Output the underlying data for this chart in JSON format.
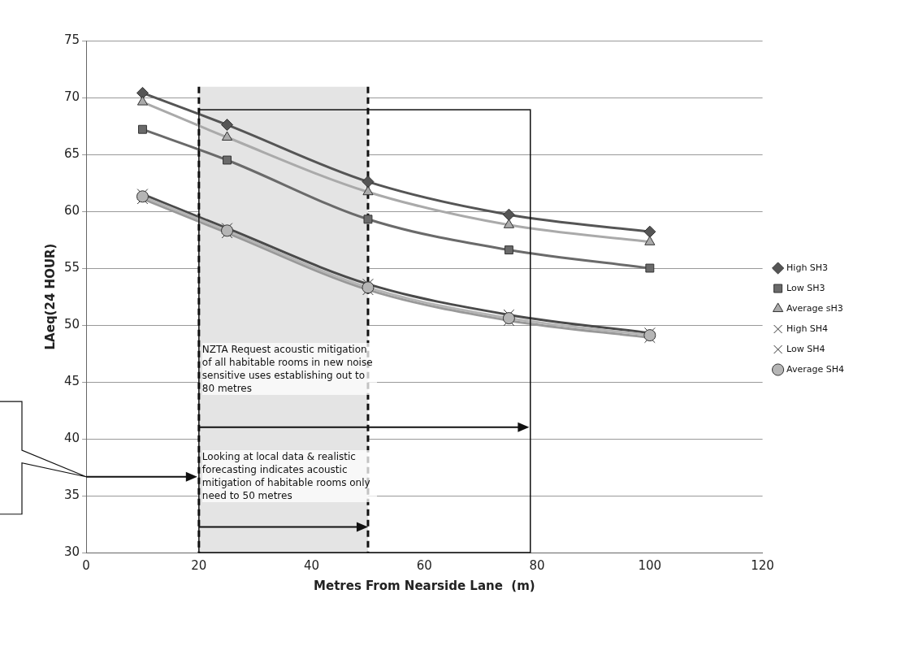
{
  "chart_data": {
    "type": "line",
    "xlabel": "Metres From Nearside Lane  (m)",
    "ylabel": "LAeq(24 HOUR)",
    "x": [
      10,
      25,
      50,
      75,
      100
    ],
    "series": [
      {
        "name": "High SH3",
        "color": "#555555",
        "marker": "diamond",
        "values": [
          70.4,
          67.6,
          62.6,
          59.7,
          58.2
        ]
      },
      {
        "name": "Low SH3",
        "color": "#6a6a6a",
        "marker": "square",
        "values": [
          67.2,
          64.5,
          59.3,
          56.6,
          55.0
        ]
      },
      {
        "name": "Average sH3",
        "color": "#aaaaaa",
        "marker": "triangle",
        "values": [
          69.6,
          66.5,
          61.7,
          58.8,
          57.3
        ]
      },
      {
        "name": "High SH4",
        "color": "#4a4a4a",
        "marker": "cross",
        "values": [
          61.5,
          58.5,
          53.6,
          50.9,
          49.3
        ]
      },
      {
        "name": "Low SH4",
        "color": "#999999",
        "marker": "cross",
        "values": [
          61.1,
          58.1,
          53.1,
          50.4,
          48.9
        ]
      },
      {
        "name": "Average SH4",
        "color": "#b5b5b5",
        "marker": "circle",
        "values": [
          61.3,
          58.3,
          53.3,
          50.6,
          49.1
        ]
      }
    ],
    "xlim": [
      0,
      120
    ],
    "xticks": [
      0,
      20,
      40,
      60,
      80,
      100,
      120
    ],
    "ylim": [
      30,
      75
    ],
    "yticks": [
      30,
      35,
      40,
      45,
      50,
      55,
      60,
      65,
      70,
      75
    ],
    "grid": "y",
    "legend": "right",
    "line_style": "solid",
    "bands": [
      {
        "axis": "x",
        "from": 20,
        "to": 50,
        "color": "#e4e4e4"
      }
    ],
    "ref_lines": [
      {
        "axis": "x",
        "value": 20,
        "line_style": "dashed"
      },
      {
        "axis": "x",
        "value": 50,
        "line_style": "dashed"
      }
    ],
    "annotations": [
      "NZTA Request acoustic mitigation of all habitable rooms in new noise sensitive uses establishing out to 80 metres",
      "Looking at local data & realistic forecasting indicates acoustic mitigation of habitable rooms only need to 50 metres"
    ]
  }
}
